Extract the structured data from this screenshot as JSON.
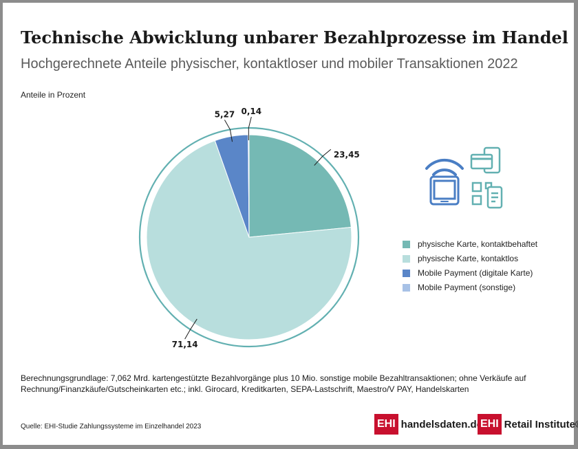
{
  "header": {
    "title": "Technische Abwicklung unbarer Bezahlprozesse im Handel",
    "subtitle": "Hochgerechnete Anteile physischer, kontaktloser und mobiler Transaktionen 2022",
    "unit_note": "Anteile in Prozent"
  },
  "chart_data": {
    "type": "pie",
    "unit": "Anteile in Prozent",
    "slices": [
      {
        "name": "physische Karte, kontaktbehaftet",
        "value": 23.45,
        "label": "23,45",
        "color": "#75b9b4"
      },
      {
        "name": "physische Karte, kontaktlos",
        "value": 71.14,
        "label": "71,14",
        "color": "#b8dedd"
      },
      {
        "name": "Mobile Payment (digitale Karte)",
        "value": 5.27,
        "label": "5,27",
        "color": "#5a86c8"
      },
      {
        "name": "Mobile Payment (sonstige)",
        "value": 0.14,
        "label": "0,14",
        "color": "#a7c1e6"
      }
    ],
    "legend_position": "right",
    "ring_color": "#62b0b1"
  },
  "icons": [
    "nfc-phone-icon",
    "card-phone-icon",
    "qr-code-phone-icon"
  ],
  "footer": {
    "note": "Berechnungsgrundlage: 7,062 Mrd. kartengestützte Bezahlvorgänge plus 10 Mio. sonstige mobile Bezahltransaktionen; ohne Verkäufe auf Rechnung/Finanzkäufe/Gutscheinkarten etc.; inkl. Girocard, Kreditkarten, SEPA-Lastschrift, Maestro/V PAY, Handelskarten",
    "source": "Quelle: EHI-Studie Zahlungssysteme im Einzelhandel 2023",
    "logo1_box": "EHI",
    "logo1_text": "handelsdaten.de",
    "logo2_box": "EHI",
    "logo2_text": "Retail Institute®"
  }
}
